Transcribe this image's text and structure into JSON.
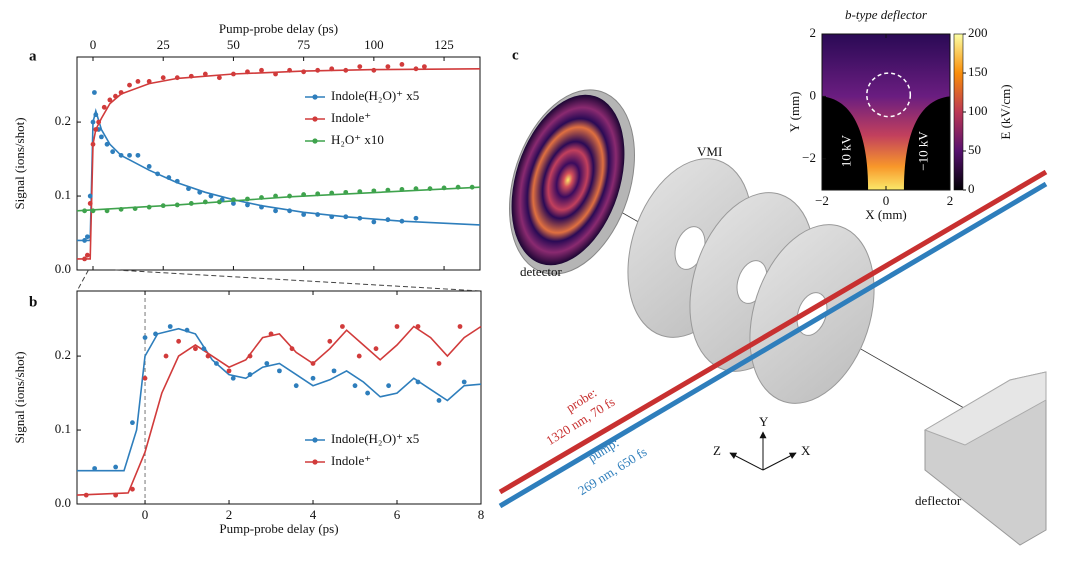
{
  "chart_data": [
    {
      "type": "scatter",
      "panel": "a",
      "xlabel": "Pump-probe delay (ps)",
      "xaxis": "top",
      "ylabel": "Signal (ions/shot)",
      "xlim": [
        -5.7,
        137.8
      ],
      "ylim": [
        0,
        0.288
      ],
      "xticks": [
        0,
        25,
        50,
        75,
        100,
        125
      ],
      "yticks": [
        {
          "value": 0,
          "label": "0.0"
        },
        0.1,
        0.2
      ],
      "legend": "center right",
      "series": [
        {
          "name": "Indole(H₂O)⁺ x5",
          "color": "#2e7ebc",
          "x": [
            -3,
            -2,
            -1,
            0,
            0.5,
            1,
            2,
            3,
            5,
            7,
            10,
            13,
            16,
            20,
            23,
            27,
            30,
            34,
            38,
            42,
            46,
            50,
            55,
            60,
            65,
            70,
            75,
            80,
            85,
            90,
            95,
            100,
            105,
            110,
            115
          ],
          "values": [
            0.04,
            0.045,
            0.1,
            0.2,
            0.24,
            0.21,
            0.19,
            0.18,
            0.17,
            0.16,
            0.155,
            0.155,
            0.155,
            0.14,
            0.13,
            0.125,
            0.12,
            0.11,
            0.105,
            0.1,
            0.095,
            0.09,
            0.088,
            0.085,
            0.08,
            0.08,
            0.075,
            0.075,
            0.072,
            0.072,
            0.07,
            0.065,
            0.068,
            0.066,
            0.07
          ]
        },
        {
          "name": "Indole⁺",
          "color": "#d13b3b",
          "x": [
            -3,
            -2,
            -1,
            0,
            1,
            2,
            4,
            6,
            8,
            10,
            13,
            16,
            20,
            25,
            30,
            35,
            40,
            45,
            50,
            55,
            60,
            65,
            70,
            75,
            80,
            85,
            90,
            95,
            100,
            105,
            110,
            115,
            118
          ],
          "values": [
            0.015,
            0.02,
            0.09,
            0.17,
            0.19,
            0.2,
            0.22,
            0.23,
            0.235,
            0.24,
            0.25,
            0.255,
            0.255,
            0.26,
            0.26,
            0.262,
            0.265,
            0.26,
            0.265,
            0.268,
            0.27,
            0.265,
            0.27,
            0.268,
            0.27,
            0.272,
            0.27,
            0.275,
            0.27,
            0.275,
            0.278,
            0.272,
            0.275
          ]
        },
        {
          "name": "H₂O⁺ x10",
          "color": "#3fa34d",
          "x": [
            -3,
            0,
            5,
            10,
            15,
            20,
            25,
            30,
            35,
            40,
            45,
            50,
            55,
            60,
            65,
            70,
            75,
            80,
            85,
            90,
            95,
            100,
            105,
            110,
            115,
            120,
            125,
            130,
            135
          ],
          "values": [
            0.08,
            0.08,
            0.08,
            0.082,
            0.083,
            0.085,
            0.087,
            0.088,
            0.09,
            0.092,
            0.092,
            0.095,
            0.096,
            0.098,
            0.1,
            0.1,
            0.102,
            0.103,
            0.104,
            0.105,
            0.106,
            0.107,
            0.108,
            0.109,
            0.11,
            0.11,
            0.111,
            0.112,
            0.112
          ]
        }
      ],
      "fits": [
        {
          "color": "#2e7ebc",
          "x": [
            -5.7,
            -1,
            0,
            1,
            3,
            6,
            10,
            20,
            30,
            40,
            50,
            60,
            75,
            90,
            110,
            137.8
          ],
          "values": [
            0.04,
            0.04,
            0.2,
            0.215,
            0.19,
            0.17,
            0.155,
            0.135,
            0.118,
            0.105,
            0.095,
            0.087,
            0.078,
            0.072,
            0.066,
            0.061
          ]
        },
        {
          "color": "#d13b3b",
          "x": [
            -5.7,
            -1,
            0,
            1,
            3,
            6,
            10,
            20,
            30,
            50,
            75,
            100,
            137.8
          ],
          "values": [
            0.015,
            0.015,
            0.17,
            0.19,
            0.205,
            0.225,
            0.238,
            0.252,
            0.259,
            0.265,
            0.269,
            0.271,
            0.272
          ]
        },
        {
          "color": "#3fa34d",
          "x": [
            -5.7,
            30,
            70,
            137.8
          ],
          "values": [
            0.08,
            0.088,
            0.099,
            0.112
          ]
        }
      ]
    },
    {
      "type": "scatter",
      "panel": "b",
      "xlabel": "Pump-probe delay (ps)",
      "xaxis": "bottom",
      "ylabel": "Signal (ions/shot)",
      "xlim": [
        -1.62,
        8
      ],
      "ylim": [
        0,
        0.288
      ],
      "xticks": [
        0,
        2,
        4,
        6,
        8
      ],
      "yticks": [
        {
          "value": 0,
          "label": "0.0"
        },
        0.1,
        0.2
      ],
      "legend": "lower right",
      "reference_line_x": 0,
      "series": [
        {
          "name": "Indole(H₂O)⁺ x5",
          "color": "#2e7ebc",
          "x": [
            -1.2,
            -0.7,
            -0.3,
            0,
            0.25,
            0.6,
            1.0,
            1.4,
            1.7,
            2.1,
            2.5,
            2.9,
            3.2,
            3.6,
            4.0,
            4.5,
            5.0,
            5.3,
            5.8,
            6.5,
            7.0,
            7.6
          ],
          "values": [
            0.048,
            0.05,
            0.11,
            0.225,
            0.23,
            0.24,
            0.235,
            0.21,
            0.19,
            0.17,
            0.175,
            0.19,
            0.18,
            0.16,
            0.17,
            0.18,
            0.16,
            0.15,
            0.16,
            0.165,
            0.14,
            0.165
          ]
        },
        {
          "name": "Indole⁺",
          "color": "#d13b3b",
          "x": [
            -1.4,
            -0.7,
            -0.3,
            0,
            0.5,
            0.8,
            1.2,
            1.5,
            2,
            2.5,
            3,
            3.5,
            4,
            4.4,
            4.7,
            5.1,
            5.5,
            6,
            6.5,
            7,
            7.5
          ],
          "values": [
            0.012,
            0.012,
            0.02,
            0.17,
            0.2,
            0.22,
            0.21,
            0.2,
            0.18,
            0.2,
            0.23,
            0.21,
            0.19,
            0.22,
            0.24,
            0.2,
            0.21,
            0.24,
            0.24,
            0.19,
            0.24
          ]
        }
      ],
      "fits": [
        {
          "color": "#2e7ebc",
          "x": [
            -1.62,
            -0.5,
            -0.2,
            0,
            0.3,
            0.8,
            1.2,
            1.6,
            2,
            2.4,
            2.8,
            3.2,
            3.6,
            4,
            4.4,
            4.8,
            5.2,
            5.6,
            6,
            6.4,
            6.8,
            7.2,
            7.6,
            8
          ],
          "values": [
            0.045,
            0.045,
            0.1,
            0.2,
            0.23,
            0.237,
            0.23,
            0.195,
            0.175,
            0.17,
            0.185,
            0.19,
            0.175,
            0.16,
            0.168,
            0.18,
            0.165,
            0.145,
            0.15,
            0.17,
            0.155,
            0.14,
            0.16,
            0.162
          ]
        },
        {
          "color": "#d13b3b",
          "x": [
            -1.62,
            -0.4,
            0,
            0.4,
            0.8,
            1.2,
            1.6,
            2,
            2.4,
            2.8,
            3.2,
            3.6,
            4,
            4.4,
            4.8,
            5.2,
            5.6,
            6,
            6.4,
            6.8,
            7.2,
            7.6,
            8
          ],
          "values": [
            0.012,
            0.015,
            0.07,
            0.15,
            0.2,
            0.215,
            0.2,
            0.185,
            0.195,
            0.225,
            0.23,
            0.205,
            0.19,
            0.21,
            0.235,
            0.215,
            0.195,
            0.215,
            0.24,
            0.225,
            0.2,
            0.225,
            0.24
          ]
        }
      ]
    },
    {
      "type": "heatmap",
      "title": "b-type deflector",
      "xlabel": "X (mm)",
      "ylabel": "Y (mm)",
      "xlim": [
        -2,
        2
      ],
      "ylim": [
        -3,
        2
      ],
      "xticks": [
        {
          "value": -2,
          "label": "−2"
        },
        0,
        2
      ],
      "yticks": [
        {
          "value": -2,
          "label": "−2"
        },
        0,
        2
      ],
      "colorbar_label": "E (kV/cm)",
      "clim": [
        0,
        200
      ],
      "cticks": [
        0,
        50,
        100,
        150,
        200
      ],
      "annotations": [
        "10 kV",
        "−10 kV"
      ]
    }
  ],
  "diagram": {
    "panel": "c",
    "vmi": "VMI",
    "detector": "detector",
    "deflector": "deflector",
    "probe": "probe:",
    "probe_spec": "1320 nm, 70 fs",
    "pump": "pump:",
    "pump_spec": "269 nm, 650 fs",
    "axis_x": "X",
    "axis_y": "Y",
    "axis_z": "Z"
  }
}
